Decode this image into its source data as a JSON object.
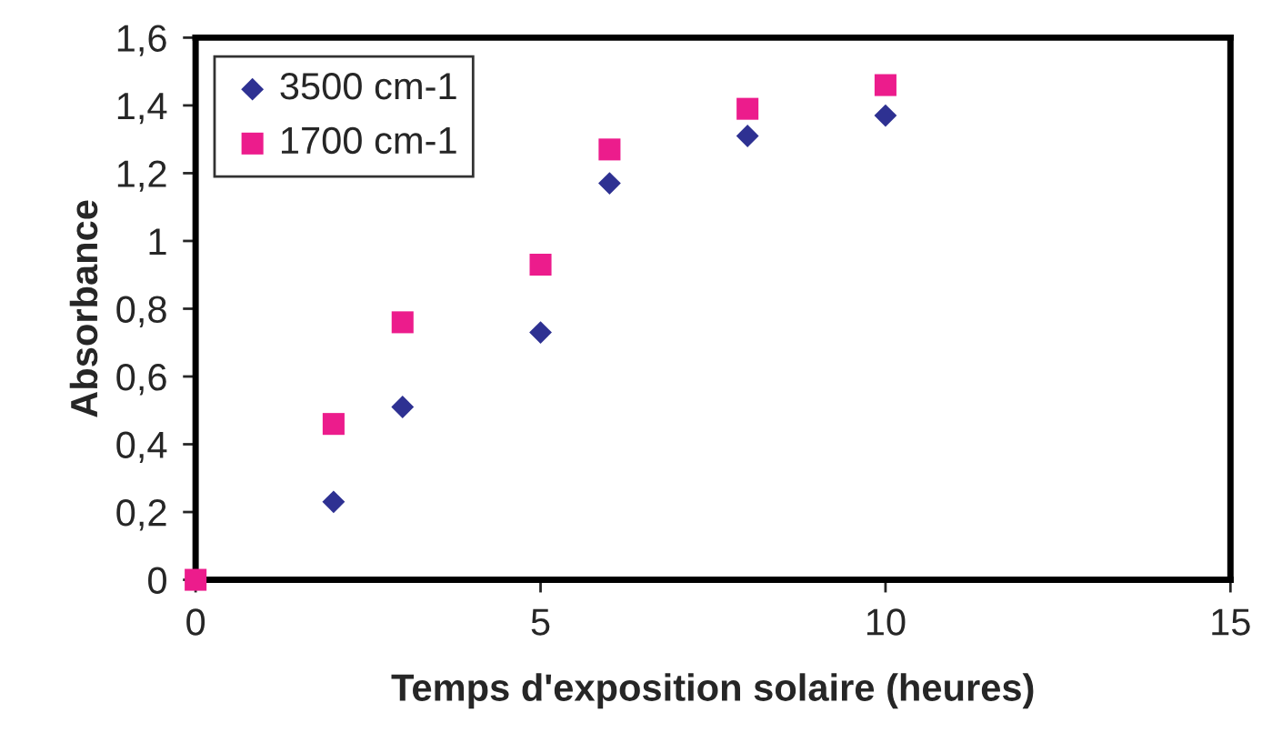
{
  "chart_data": {
    "type": "scatter",
    "xlabel": "Temps d'exposition solaire (heures)",
    "ylabel": "Absorbance",
    "x": [
      0,
      2,
      3,
      5,
      6,
      8,
      10
    ],
    "series": [
      {
        "name": "3500 cm-1",
        "color": "#2e3192",
        "marker": "diamond",
        "values": [
          null,
          0.23,
          0.51,
          0.73,
          1.17,
          1.31,
          1.37
        ]
      },
      {
        "name": "1700 cm-1",
        "color": "#ec1c8c",
        "marker": "square",
        "values": [
          0,
          0.46,
          0.76,
          0.93,
          1.27,
          1.39,
          1.46
        ]
      }
    ],
    "xlim": [
      0,
      15
    ],
    "xticks": [
      0,
      5,
      10,
      15
    ],
    "ylim": [
      0,
      1.6
    ],
    "yticks": [
      0,
      {
        "value": 0.2,
        "label": "0,2"
      },
      {
        "value": 0.4,
        "label": "0,4"
      },
      {
        "value": 0.6,
        "label": "0,6"
      },
      {
        "value": 0.8,
        "label": "0,8"
      },
      1,
      {
        "value": 1.2,
        "label": "1,2"
      },
      {
        "value": 1.4,
        "label": "1,4"
      },
      {
        "value": 1.6,
        "label": "1,6"
      }
    ],
    "grid": false,
    "legend": "top left"
  }
}
